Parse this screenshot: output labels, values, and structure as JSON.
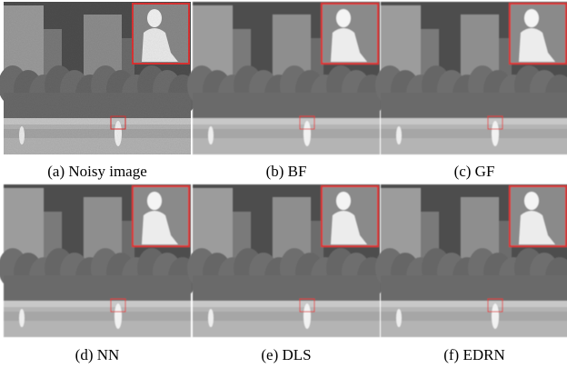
{
  "panels": [
    {
      "caption": "(a) Noisy image"
    },
    {
      "caption": "(b) BF"
    },
    {
      "caption": "(c) GF"
    },
    {
      "caption": "(d) NN"
    },
    {
      "caption": "(e) DLS"
    },
    {
      "caption": "(f) EDRN"
    }
  ]
}
